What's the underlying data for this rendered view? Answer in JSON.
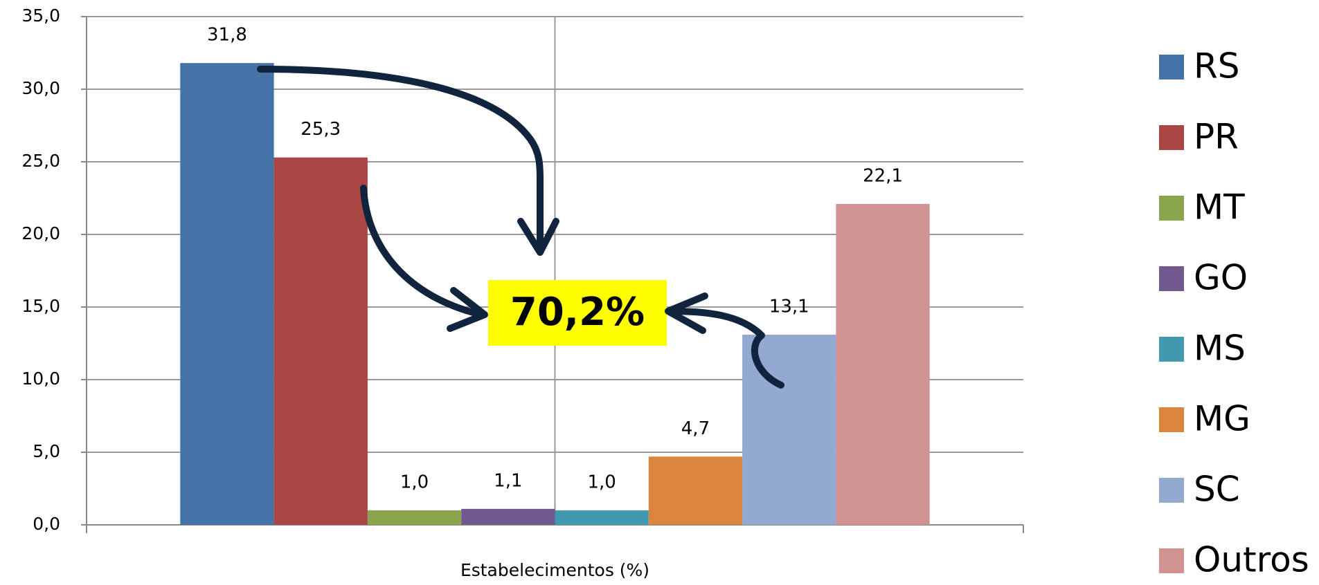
{
  "chart_data": {
    "type": "bar",
    "categories": [
      "Estabelecimentos (%)"
    ],
    "series": [
      {
        "name": "RS",
        "color": "#4572a7",
        "values": [
          31.8
        ],
        "value_labels": [
          "31,8"
        ]
      },
      {
        "name": "PR",
        "color": "#aa4643",
        "values": [
          25.3
        ],
        "value_labels": [
          "25,3"
        ]
      },
      {
        "name": "MT",
        "color": "#89a54e",
        "values": [
          1.0
        ],
        "value_labels": [
          "1,0"
        ]
      },
      {
        "name": "GO",
        "color": "#71588f",
        "values": [
          1.1
        ],
        "value_labels": [
          "1,1"
        ]
      },
      {
        "name": "MS",
        "color": "#4198af",
        "values": [
          1.0
        ],
        "value_labels": [
          "1,0"
        ]
      },
      {
        "name": "MG",
        "color": "#db843d",
        "values": [
          4.7
        ],
        "value_labels": [
          "4,7"
        ]
      },
      {
        "name": "SC",
        "color": "#93a9cf",
        "values": [
          13.1
        ],
        "value_labels": [
          "13,1"
        ]
      },
      {
        "name": "Outros",
        "color": "#d19392",
        "values": [
          22.1
        ],
        "value_labels": [
          "22,1"
        ]
      }
    ],
    "ylim": [
      0,
      35
    ],
    "yticks": [
      {
        "value": 0,
        "label": "0,0"
      },
      {
        "value": 5,
        "label": "5,0"
      },
      {
        "value": 10,
        "label": "10,0"
      },
      {
        "value": 15,
        "label": "15,0"
      },
      {
        "value": 20,
        "label": "20,0"
      },
      {
        "value": 25,
        "label": "25,0"
      },
      {
        "value": 30,
        "label": "30,0"
      },
      {
        "value": 35,
        "label": "35,0"
      }
    ],
    "grid": true,
    "legend": "right",
    "annotation": "70,2%"
  }
}
